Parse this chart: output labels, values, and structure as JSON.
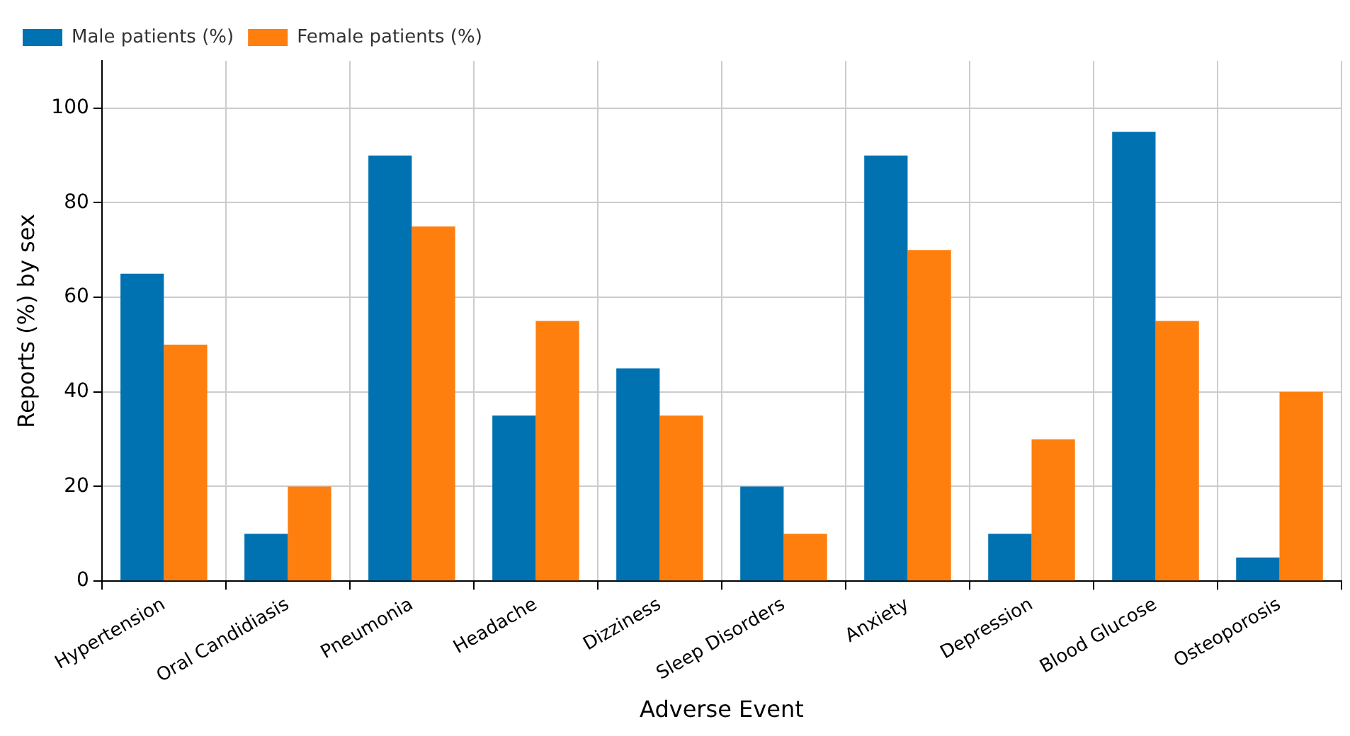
{
  "chart_data": {
    "type": "bar",
    "xlabel": "Adverse Event",
    "ylabel": "Reports (%) by sex",
    "categories": [
      "Hypertension",
      "Oral Candidiasis",
      "Pneumonia",
      "Headache",
      "Dizziness",
      "Sleep Disorders",
      "Anxiety",
      "Depression",
      "Blood Glucose",
      "Osteoporosis"
    ],
    "series": [
      {
        "name": "Male patients (%)",
        "color": "#0072b2",
        "values": [
          65,
          10,
          90,
          35,
          45,
          20,
          90,
          10,
          95,
          5
        ]
      },
      {
        "name": "Female patients (%)",
        "color": "#ff7f0e",
        "values": [
          50,
          20,
          75,
          55,
          35,
          10,
          70,
          30,
          55,
          40
        ]
      }
    ],
    "ylim": [
      0,
      110
    ],
    "yticks": [
      0,
      20,
      40,
      60,
      80,
      100
    ],
    "grid": true,
    "legend": "top left"
  }
}
